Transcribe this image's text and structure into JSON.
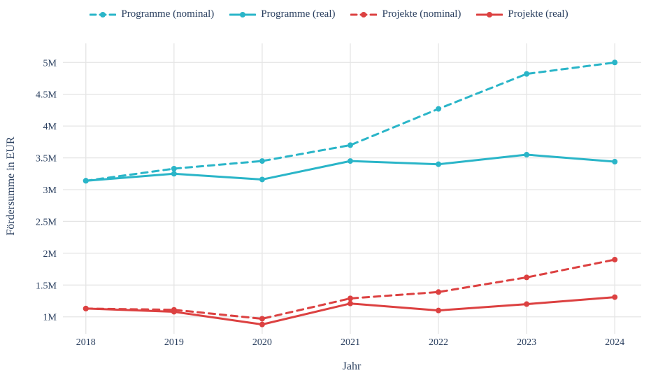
{
  "colors": {
    "text": "#2a3f5f",
    "grid": "#e5e5e5",
    "background": "#ffffff",
    "programme": "#2ab5c8",
    "projekte": "#dc4141"
  },
  "chart_data": {
    "type": "line",
    "xlabel": "Jahr",
    "ylabel": "Fördersumme in EUR",
    "unit": "millions EUR",
    "x": [
      2018,
      2019,
      2020,
      2021,
      2022,
      2023,
      2024
    ],
    "x_tick_labels": [
      "2018",
      "2019",
      "2020",
      "2021",
      "2022",
      "2023",
      "2024"
    ],
    "y_tick_values": [
      1,
      1.5,
      2,
      2.5,
      3,
      3.5,
      4,
      4.5,
      5
    ],
    "y_tick_labels": [
      "1M",
      "1.5M",
      "2M",
      "2.5M",
      "3M",
      "3.5M",
      "4M",
      "4.5M",
      "5M"
    ],
    "xlim": [
      2017.74,
      2024.3
    ],
    "ylim": [
      0.81,
      5.3
    ],
    "grid": true,
    "legend_position": "top-center",
    "series": [
      {
        "name": "Programme (nominal)",
        "color": "#2ab5c8",
        "dash": "dashed",
        "values": [
          3.14,
          3.33,
          3.45,
          3.7,
          4.27,
          4.82,
          5.0
        ]
      },
      {
        "name": "Programme (real)",
        "color": "#2ab5c8",
        "dash": "solid",
        "values": [
          3.14,
          3.25,
          3.16,
          3.45,
          3.4,
          3.55,
          3.44
        ]
      },
      {
        "name": "Projekte (nominal)",
        "color": "#dc4141",
        "dash": "dashed",
        "values": [
          1.13,
          1.11,
          0.97,
          1.29,
          1.39,
          1.62,
          1.9
        ]
      },
      {
        "name": "Projekte (real)",
        "color": "#dc4141",
        "dash": "solid",
        "values": [
          1.13,
          1.08,
          0.88,
          1.21,
          1.1,
          1.2,
          1.31
        ]
      }
    ]
  }
}
